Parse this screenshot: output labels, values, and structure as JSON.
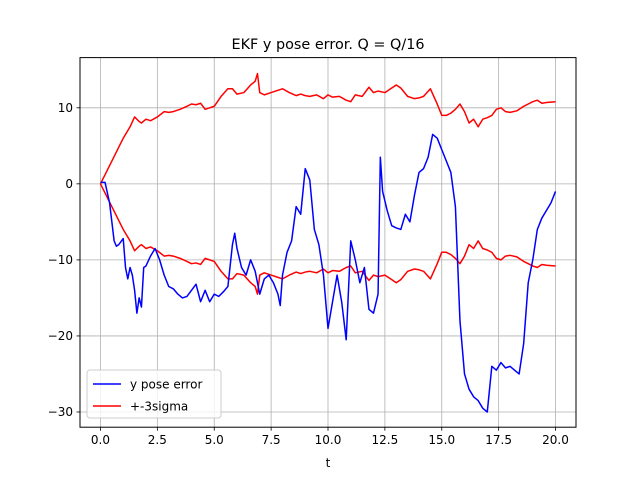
{
  "chart_data": {
    "type": "line",
    "title": "EKF y pose error. Q = Q/16",
    "xlabel": "t",
    "ylabel": "",
    "xlim": [
      -0.9,
      20.9
    ],
    "ylim": [
      -32,
      16.6
    ],
    "xticks": [
      0.0,
      2.5,
      5.0,
      7.5,
      10.0,
      12.5,
      15.0,
      17.5,
      20.0
    ],
    "xtick_labels": [
      "0.0",
      "2.5",
      "5.0",
      "7.5",
      "10.0",
      "12.5",
      "15.0",
      "17.5",
      "20.0"
    ],
    "yticks": [
      -30,
      -20,
      -10,
      0,
      10
    ],
    "ytick_labels": [
      "−30",
      "−20",
      "−10",
      "0",
      "10"
    ],
    "grid": true,
    "legend": "lower-left",
    "series": [
      {
        "name": "y pose error",
        "color": "#0000ff",
        "x": [
          0,
          0.2,
          0.4,
          0.6,
          0.7,
          0.8,
          1.0,
          1.1,
          1.2,
          1.3,
          1.4,
          1.5,
          1.6,
          1.7,
          1.8,
          1.9,
          2.0,
          2.2,
          2.4,
          2.6,
          2.8,
          3.0,
          3.2,
          3.4,
          3.6,
          3.8,
          4.0,
          4.2,
          4.4,
          4.6,
          4.8,
          5.0,
          5.2,
          5.4,
          5.6,
          5.8,
          5.9,
          6.0,
          6.2,
          6.4,
          6.6,
          6.8,
          7.0,
          7.2,
          7.4,
          7.6,
          7.8,
          7.9,
          8.0,
          8.2,
          8.4,
          8.6,
          8.8,
          9.0,
          9.2,
          9.4,
          9.6,
          9.8,
          10.0,
          10.2,
          10.4,
          10.6,
          10.8,
          11.0,
          11.2,
          11.4,
          11.6,
          11.8,
          12.0,
          12.2,
          12.3,
          12.4,
          12.6,
          12.8,
          13.0,
          13.2,
          13.4,
          13.6,
          13.8,
          14.0,
          14.2,
          14.4,
          14.6,
          14.8,
          15.0,
          15.2,
          15.4,
          15.6,
          15.8,
          16.0,
          16.2,
          16.4,
          16.6,
          16.8,
          17.0,
          17.2,
          17.4,
          17.6,
          17.8,
          18.0,
          18.2,
          18.4,
          18.6,
          18.8,
          19.0,
          19.2,
          19.4,
          19.6,
          19.8,
          20.0
        ],
        "values": [
          0.2,
          0.2,
          -2.5,
          -7.5,
          -8.2,
          -8.0,
          -7.2,
          -11.0,
          -12.5,
          -11.0,
          -12.0,
          -14.0,
          -17.0,
          -15.0,
          -16.2,
          -11.0,
          -10.8,
          -9.5,
          -8.5,
          -10.0,
          -12.0,
          -13.5,
          -13.8,
          -14.5,
          -15.0,
          -14.8,
          -14.0,
          -13.2,
          -15.5,
          -14.0,
          -15.5,
          -14.5,
          -14.8,
          -14.2,
          -13.5,
          -8.0,
          -6.5,
          -8.5,
          -11.0,
          -12.0,
          -10.0,
          -11.5,
          -14.5,
          -12.5,
          -12.0,
          -13.0,
          -14.5,
          -16.0,
          -12.0,
          -9.0,
          -7.5,
          -3.0,
          -4.0,
          2.0,
          0.5,
          -6.0,
          -8.0,
          -12.0,
          -19.0,
          -15.5,
          -12.0,
          -15.5,
          -20.5,
          -7.5,
          -10.0,
          -13.0,
          -11.0,
          -16.5,
          -17.0,
          -14.5,
          3.5,
          -1.0,
          -3.5,
          -5.5,
          -5.8,
          -6.0,
          -4.0,
          -5.0,
          -1.5,
          1.5,
          2.0,
          3.5,
          6.5,
          6.0,
          4.5,
          3.0,
          1.5,
          -3.0,
          -18.0,
          -25.0,
          -27.0,
          -28.0,
          -28.5,
          -29.5,
          -30.0,
          -24.0,
          -24.5,
          -23.5,
          -24.2,
          -24.0,
          -24.5,
          -25.0,
          -21.0,
          -13.0,
          -10.0,
          -6.0,
          -4.5,
          -3.5,
          -2.5,
          -1.0
        ]
      },
      {
        "name": "+-3sigma",
        "color": "#ff0000",
        "x": [
          0,
          0.5,
          1.0,
          1.3,
          1.5,
          1.7,
          1.8,
          2.0,
          2.2,
          2.5,
          2.8,
          3.0,
          3.2,
          3.5,
          3.8,
          4.0,
          4.2,
          4.4,
          4.6,
          4.8,
          5.0,
          5.3,
          5.6,
          5.8,
          6.0,
          6.3,
          6.6,
          6.8,
          6.9,
          7.0,
          7.2,
          7.5,
          7.8,
          8.0,
          8.3,
          8.6,
          8.8,
          9.0,
          9.2,
          9.5,
          9.8,
          10.0,
          10.2,
          10.5,
          10.8,
          11.0,
          11.2,
          11.5,
          11.8,
          12.0,
          12.2,
          12.5,
          12.8,
          13.0,
          13.2,
          13.5,
          13.8,
          14.0,
          14.2,
          14.5,
          14.8,
          15.0,
          15.2,
          15.4,
          15.6,
          15.8,
          16.0,
          16.2,
          16.4,
          16.6,
          16.8,
          17.0,
          17.2,
          17.4,
          17.6,
          17.8,
          18.0,
          18.3,
          18.6,
          18.8,
          19.0,
          19.2,
          19.4,
          19.6,
          20.0
        ],
        "values": [
          0.0,
          3.0,
          6.0,
          7.5,
          8.8,
          8.2,
          8.0,
          8.5,
          8.3,
          8.8,
          9.5,
          9.4,
          9.5,
          9.8,
          10.2,
          10.5,
          10.4,
          10.6,
          9.8,
          10.0,
          10.2,
          11.5,
          12.5,
          12.5,
          11.8,
          12.0,
          13.0,
          13.5,
          14.5,
          12.0,
          11.7,
          12.0,
          12.3,
          12.5,
          12.0,
          11.6,
          11.8,
          11.6,
          11.5,
          11.7,
          11.2,
          11.7,
          11.4,
          11.5,
          11.0,
          10.8,
          11.7,
          11.5,
          12.7,
          12.0,
          12.2,
          12.0,
          12.6,
          13.0,
          12.6,
          11.5,
          11.2,
          11.3,
          11.5,
          12.5,
          10.5,
          9.0,
          9.0,
          9.3,
          9.8,
          10.5,
          9.5,
          8.0,
          8.5,
          7.5,
          8.5,
          8.7,
          9.0,
          9.8,
          10.0,
          9.5,
          9.4,
          9.6,
          10.2,
          10.5,
          10.8,
          11.0,
          10.6,
          10.7,
          10.8
        ]
      }
    ]
  }
}
